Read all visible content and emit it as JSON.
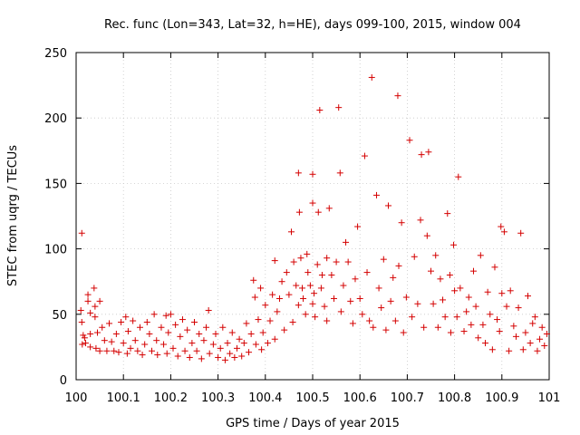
{
  "chart_data": {
    "type": "scatter",
    "title": "Rec. func (Lon=343, Lat=32, h=HE), days 099-100, 2015, window 004",
    "xlabel": "GPS time / Days of year 2015",
    "ylabel": "STEC from uqrg / TECUs",
    "xlim": [
      100,
      101
    ],
    "ylim": [
      0,
      250
    ],
    "xticks": [
      "100",
      "100.1",
      "100.2",
      "100.3",
      "100.4",
      "100.5",
      "100.6",
      "100.7",
      "100.8",
      "100.9",
      "101"
    ],
    "yticks": [
      "0",
      "50",
      "100",
      "150",
      "200",
      "250"
    ],
    "grid": true,
    "marker": "+",
    "color": "#d40000",
    "series": [
      {
        "points": [
          [
            100.012,
            112
          ],
          [
            100.01,
            53
          ],
          [
            100.012,
            44
          ],
          [
            100.015,
            34
          ],
          [
            100.013,
            27
          ],
          [
            100.018,
            32
          ],
          [
            100.02,
            28
          ],
          [
            100.025,
            65
          ],
          [
            100.025,
            60
          ],
          [
            100.03,
            51
          ],
          [
            100.03,
            35
          ],
          [
            100.03,
            25
          ],
          [
            100.038,
            70
          ],
          [
            100.04,
            56
          ],
          [
            100.04,
            48
          ],
          [
            100.042,
            24
          ],
          [
            100.045,
            36
          ],
          [
            100.05,
            60
          ],
          [
            100.05,
            22
          ],
          [
            100.055,
            40
          ],
          [
            100.06,
            30
          ],
          [
            100.065,
            22
          ],
          [
            100.07,
            43
          ],
          [
            100.075,
            29
          ],
          [
            100.08,
            22
          ],
          [
            100.085,
            35
          ],
          [
            100.09,
            21
          ],
          [
            100.095,
            44
          ],
          [
            100.1,
            28
          ],
          [
            100.105,
            48
          ],
          [
            100.108,
            20
          ],
          [
            100.11,
            37
          ],
          [
            100.115,
            24
          ],
          [
            100.12,
            45
          ],
          [
            100.125,
            30
          ],
          [
            100.13,
            22
          ],
          [
            100.135,
            40
          ],
          [
            100.14,
            19
          ],
          [
            100.145,
            27
          ],
          [
            100.15,
            44
          ],
          [
            100.155,
            35
          ],
          [
            100.16,
            22
          ],
          [
            100.165,
            50
          ],
          [
            100.17,
            30
          ],
          [
            100.172,
            19
          ],
          [
            100.18,
            40
          ],
          [
            100.185,
            27
          ],
          [
            100.19,
            49
          ],
          [
            100.192,
            20
          ],
          [
            100.195,
            36
          ],
          [
            100.2,
            50
          ],
          [
            100.205,
            24
          ],
          [
            100.21,
            42
          ],
          [
            100.215,
            18
          ],
          [
            100.22,
            33
          ],
          [
            100.225,
            46
          ],
          [
            100.23,
            22
          ],
          [
            100.235,
            38
          ],
          [
            100.24,
            17
          ],
          [
            100.245,
            28
          ],
          [
            100.25,
            44
          ],
          [
            100.255,
            22
          ],
          [
            100.26,
            35
          ],
          [
            100.265,
            16
          ],
          [
            100.27,
            30
          ],
          [
            100.275,
            40
          ],
          [
            100.28,
            53
          ],
          [
            100.282,
            20
          ],
          [
            100.29,
            27
          ],
          [
            100.295,
            35
          ],
          [
            100.3,
            17
          ],
          [
            100.305,
            24
          ],
          [
            100.31,
            40
          ],
          [
            100.315,
            15
          ],
          [
            100.32,
            28
          ],
          [
            100.325,
            20
          ],
          [
            100.33,
            36
          ],
          [
            100.335,
            17
          ],
          [
            100.34,
            24
          ],
          [
            100.345,
            31
          ],
          [
            100.35,
            18
          ],
          [
            100.355,
            28
          ],
          [
            100.36,
            43
          ],
          [
            100.365,
            21
          ],
          [
            100.37,
            35
          ],
          [
            100.375,
            76
          ],
          [
            100.378,
            63
          ],
          [
            100.38,
            27
          ],
          [
            100.385,
            46
          ],
          [
            100.39,
            70
          ],
          [
            100.392,
            23
          ],
          [
            100.395,
            36
          ],
          [
            100.4,
            57
          ],
          [
            100.405,
            28
          ],
          [
            100.41,
            45
          ],
          [
            100.415,
            65
          ],
          [
            100.42,
            91
          ],
          [
            100.42,
            31
          ],
          [
            100.425,
            52
          ],
          [
            100.43,
            62
          ],
          [
            100.435,
            75
          ],
          [
            100.44,
            38
          ],
          [
            100.445,
            82
          ],
          [
            100.45,
            65
          ],
          [
            100.455,
            113
          ],
          [
            100.458,
            44
          ],
          [
            100.46,
            90
          ],
          [
            100.465,
            72
          ],
          [
            100.47,
            158
          ],
          [
            100.47,
            57
          ],
          [
            100.472,
            128
          ],
          [
            100.475,
            93
          ],
          [
            100.478,
            70
          ],
          [
            100.48,
            62
          ],
          [
            100.485,
            50
          ],
          [
            100.488,
            96
          ],
          [
            100.49,
            82
          ],
          [
            100.495,
            72
          ],
          [
            100.5,
            157
          ],
          [
            100.5,
            135
          ],
          [
            100.5,
            58
          ],
          [
            100.503,
            66
          ],
          [
            100.505,
            48
          ],
          [
            100.51,
            88
          ],
          [
            100.512,
            128
          ],
          [
            100.515,
            206
          ],
          [
            100.518,
            70
          ],
          [
            100.52,
            80
          ],
          [
            100.525,
            56
          ],
          [
            100.53,
            93
          ],
          [
            100.53,
            45
          ],
          [
            100.535,
            131
          ],
          [
            100.54,
            80
          ],
          [
            100.545,
            62
          ],
          [
            100.55,
            90
          ],
          [
            100.555,
            208
          ],
          [
            100.558,
            158
          ],
          [
            100.56,
            52
          ],
          [
            100.565,
            72
          ],
          [
            100.57,
            105
          ],
          [
            100.575,
            90
          ],
          [
            100.58,
            60
          ],
          [
            100.585,
            43
          ],
          [
            100.59,
            77
          ],
          [
            100.595,
            117
          ],
          [
            100.6,
            62
          ],
          [
            100.605,
            50
          ],
          [
            100.61,
            171
          ],
          [
            100.615,
            82
          ],
          [
            100.62,
            45
          ],
          [
            100.625,
            231
          ],
          [
            100.628,
            40
          ],
          [
            100.635,
            141
          ],
          [
            100.64,
            70
          ],
          [
            100.645,
            55
          ],
          [
            100.65,
            92
          ],
          [
            100.655,
            38
          ],
          [
            100.66,
            133
          ],
          [
            100.665,
            60
          ],
          [
            100.67,
            78
          ],
          [
            100.675,
            45
          ],
          [
            100.68,
            217
          ],
          [
            100.682,
            87
          ],
          [
            100.688,
            120
          ],
          [
            100.692,
            36
          ],
          [
            100.698,
            63
          ],
          [
            100.705,
            183
          ],
          [
            100.71,
            48
          ],
          [
            100.715,
            94
          ],
          [
            100.722,
            58
          ],
          [
            100.728,
            122
          ],
          [
            100.73,
            172
          ],
          [
            100.735,
            40
          ],
          [
            100.742,
            110
          ],
          [
            100.745,
            174
          ],
          [
            100.75,
            83
          ],
          [
            100.755,
            58
          ],
          [
            100.76,
            95
          ],
          [
            100.765,
            40
          ],
          [
            100.77,
            77
          ],
          [
            100.775,
            61
          ],
          [
            100.78,
            48
          ],
          [
            100.785,
            127
          ],
          [
            100.79,
            80
          ],
          [
            100.792,
            36
          ],
          [
            100.798,
            103
          ],
          [
            100.8,
            68
          ],
          [
            100.805,
            48
          ],
          [
            100.808,
            155
          ],
          [
            100.812,
            70
          ],
          [
            100.82,
            37
          ],
          [
            100.825,
            52
          ],
          [
            100.83,
            63
          ],
          [
            100.835,
            42
          ],
          [
            100.84,
            83
          ],
          [
            100.845,
            56
          ],
          [
            100.85,
            32
          ],
          [
            100.855,
            95
          ],
          [
            100.86,
            42
          ],
          [
            100.865,
            28
          ],
          [
            100.87,
            67
          ],
          [
            100.875,
            50
          ],
          [
            100.88,
            23
          ],
          [
            100.885,
            86
          ],
          [
            100.89,
            46
          ],
          [
            100.895,
            37
          ],
          [
            100.898,
            117
          ],
          [
            100.9,
            66
          ],
          [
            100.905,
            113
          ],
          [
            100.91,
            56
          ],
          [
            100.915,
            22
          ],
          [
            100.918,
            68
          ],
          [
            100.925,
            41
          ],
          [
            100.93,
            33
          ],
          [
            100.935,
            55
          ],
          [
            100.94,
            112
          ],
          [
            100.945,
            23
          ],
          [
            100.95,
            36
          ],
          [
            100.955,
            64
          ],
          [
            100.96,
            28
          ],
          [
            100.965,
            43
          ],
          [
            100.97,
            48
          ],
          [
            100.975,
            22
          ],
          [
            100.98,
            31
          ],
          [
            100.985,
            40
          ],
          [
            100.99,
            26
          ],
          [
            100.995,
            35
          ]
        ]
      }
    ]
  }
}
